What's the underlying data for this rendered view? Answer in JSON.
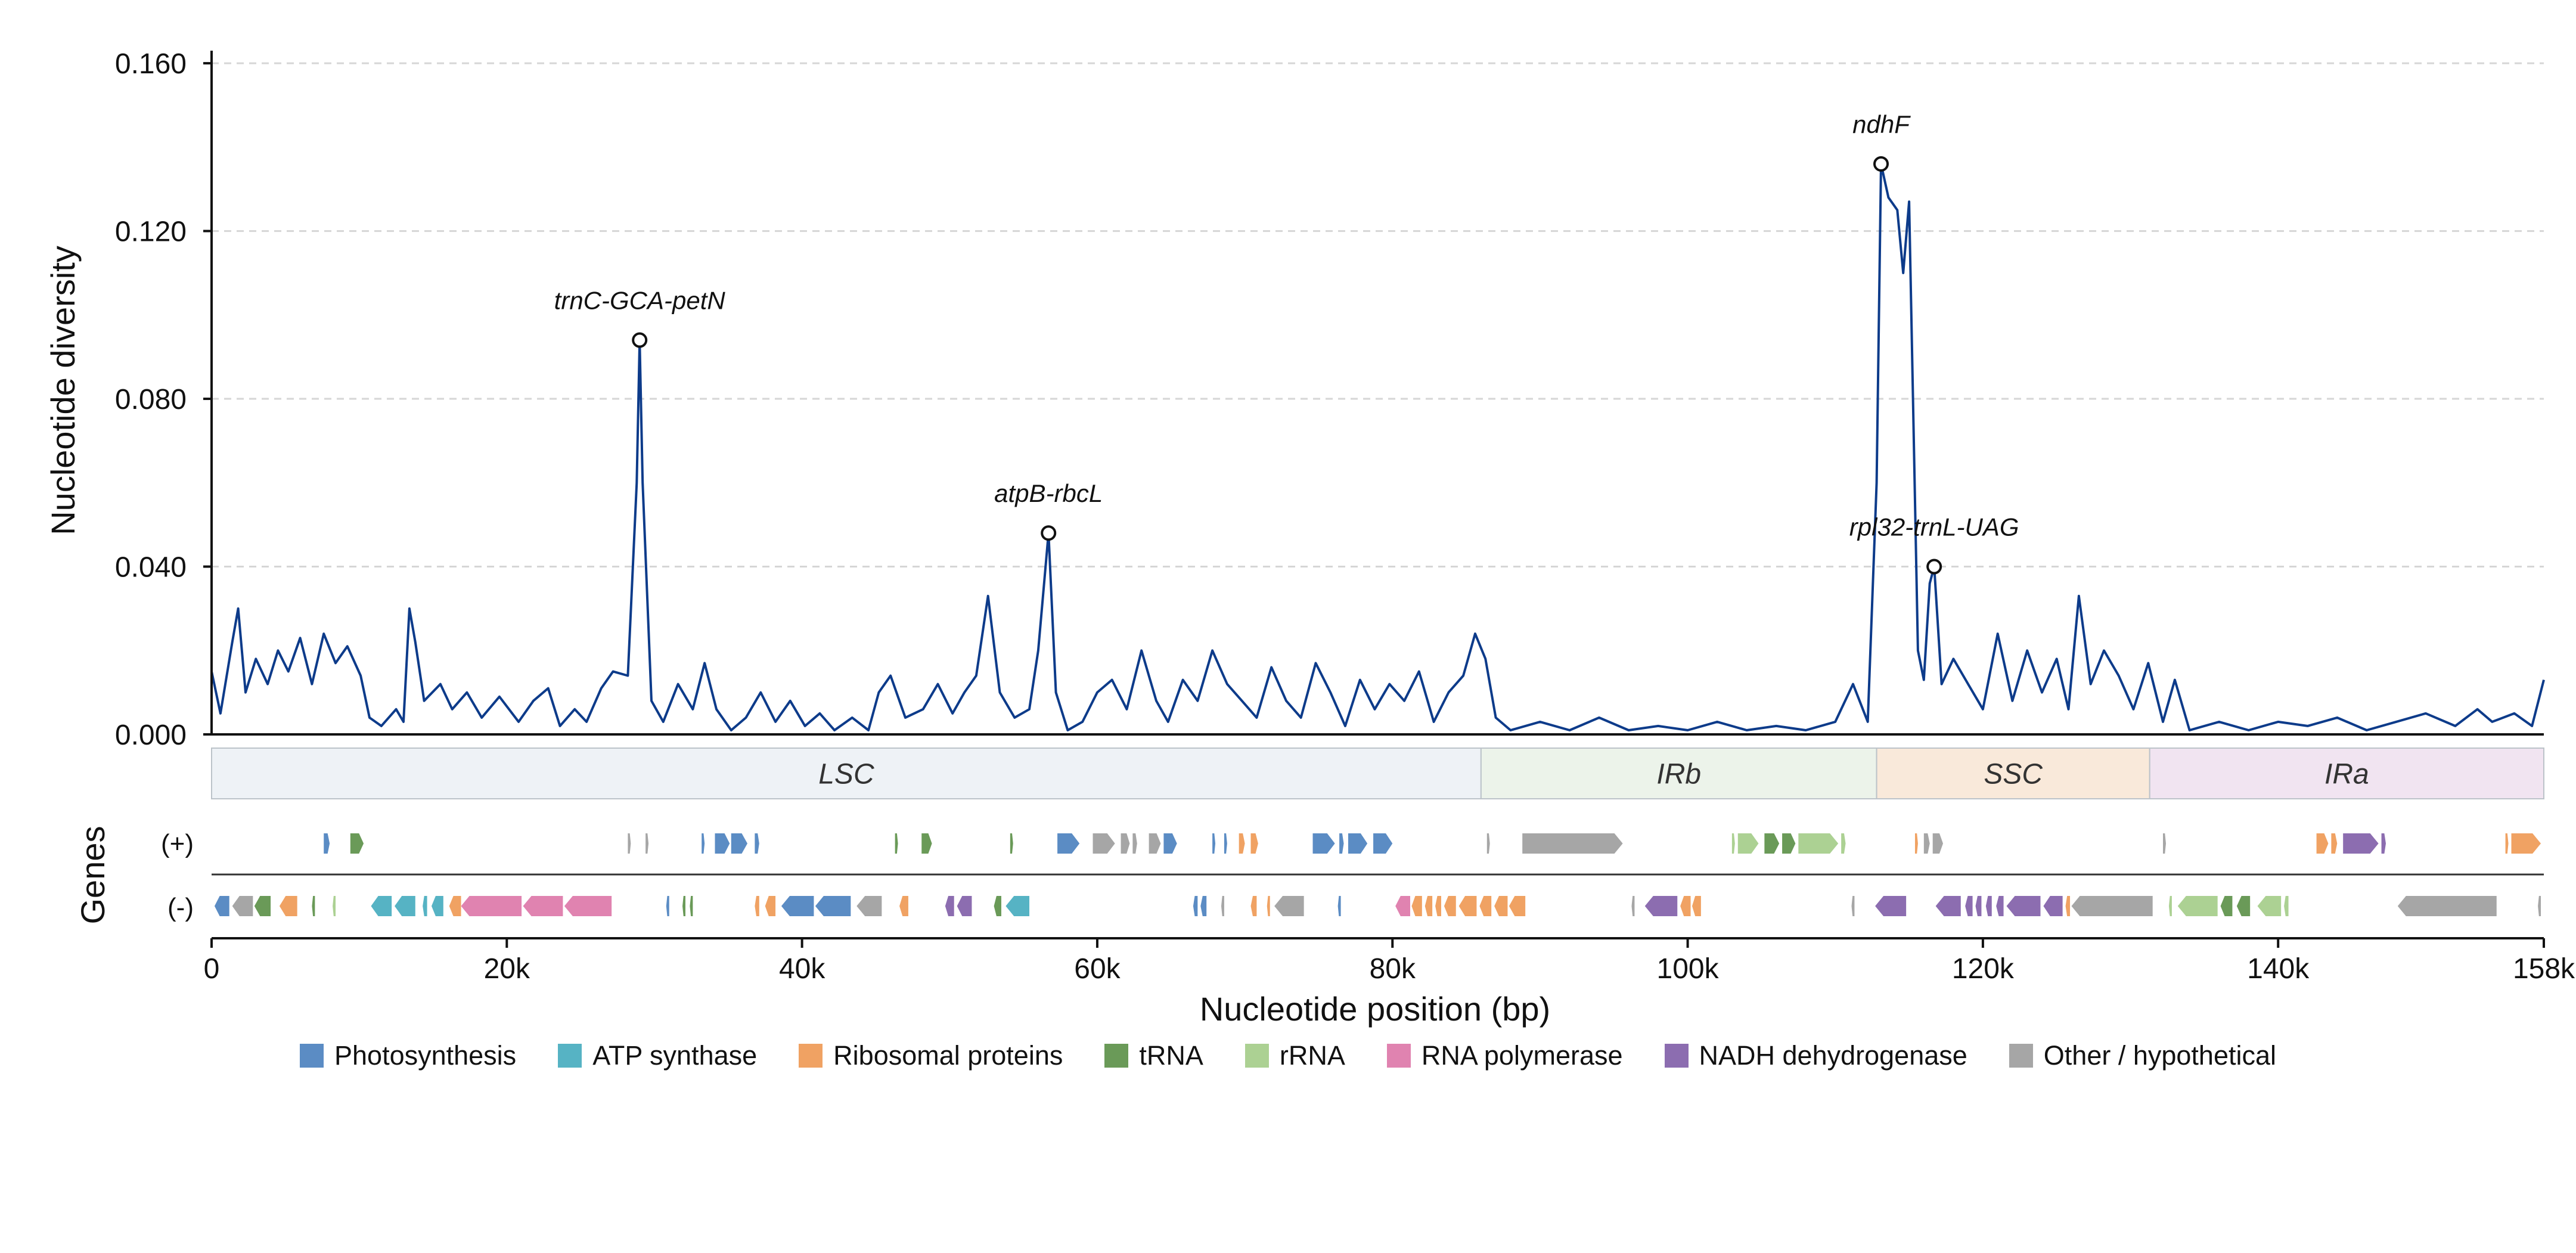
{
  "chart_data": {
    "type": "line",
    "title": "",
    "xlabel": "Nucleotide position (bp)",
    "ylabel": "Nucleotide diversity",
    "genes_label": "Genes",
    "strand_labels": [
      "(+)",
      "(-)"
    ],
    "xlim": [
      0,
      158000
    ],
    "ylim": [
      0,
      0.163
    ],
    "x_ticks": [
      0,
      20000,
      40000,
      60000,
      80000,
      100000,
      120000,
      140000,
      158000
    ],
    "x_tick_labels": [
      "0",
      "20k",
      "40k",
      "60k",
      "80k",
      "100k",
      "120k",
      "140k",
      "158k"
    ],
    "y_ticks": [
      0.0,
      0.04,
      0.08,
      0.12,
      0.16
    ],
    "y_tick_labels": [
      "0.000",
      "0.040",
      "0.080",
      "0.120",
      "0.160"
    ],
    "grid": "horizontal dashed",
    "line_color": "#0d3b8a",
    "pi_series": [
      [
        0,
        0.015
      ],
      [
        600,
        0.005
      ],
      [
        1400,
        0.022
      ],
      [
        1800,
        0.03
      ],
      [
        2300,
        0.01
      ],
      [
        3000,
        0.018
      ],
      [
        3800,
        0.012
      ],
      [
        4500,
        0.02
      ],
      [
        5200,
        0.015
      ],
      [
        6000,
        0.023
      ],
      [
        6800,
        0.012
      ],
      [
        7600,
        0.024
      ],
      [
        8400,
        0.017
      ],
      [
        9200,
        0.021
      ],
      [
        10100,
        0.014
      ],
      [
        10700,
        0.004
      ],
      [
        11500,
        0.002
      ],
      [
        12500,
        0.006
      ],
      [
        13000,
        0.003
      ],
      [
        13400,
        0.03
      ],
      [
        13800,
        0.022
      ],
      [
        14400,
        0.008
      ],
      [
        15500,
        0.012
      ],
      [
        16300,
        0.006
      ],
      [
        17300,
        0.01
      ],
      [
        18300,
        0.004
      ],
      [
        19500,
        0.009
      ],
      [
        20800,
        0.003
      ],
      [
        21800,
        0.008
      ],
      [
        22800,
        0.011
      ],
      [
        23600,
        0.002
      ],
      [
        24600,
        0.006
      ],
      [
        25400,
        0.003
      ],
      [
        26400,
        0.011
      ],
      [
        27200,
        0.015
      ],
      [
        28200,
        0.014
      ],
      [
        28800,
        0.06
      ],
      [
        29000,
        0.094
      ],
      [
        29200,
        0.06
      ],
      [
        29800,
        0.008
      ],
      [
        30600,
        0.003
      ],
      [
        31600,
        0.012
      ],
      [
        32600,
        0.006
      ],
      [
        33400,
        0.017
      ],
      [
        34200,
        0.006
      ],
      [
        35200,
        0.001
      ],
      [
        36200,
        0.004
      ],
      [
        37200,
        0.01
      ],
      [
        38200,
        0.003
      ],
      [
        39200,
        0.008
      ],
      [
        40200,
        0.002
      ],
      [
        41200,
        0.005
      ],
      [
        42200,
        0.001
      ],
      [
        43400,
        0.004
      ],
      [
        44500,
        0.001
      ],
      [
        45200,
        0.01
      ],
      [
        46000,
        0.014
      ],
      [
        47000,
        0.004
      ],
      [
        48200,
        0.006
      ],
      [
        49200,
        0.012
      ],
      [
        50200,
        0.005
      ],
      [
        51000,
        0.01
      ],
      [
        51800,
        0.014
      ],
      [
        52600,
        0.033
      ],
      [
        53400,
        0.01
      ],
      [
        54400,
        0.004
      ],
      [
        55400,
        0.006
      ],
      [
        56000,
        0.02
      ],
      [
        56700,
        0.048
      ],
      [
        57200,
        0.01
      ],
      [
        58000,
        0.001
      ],
      [
        59000,
        0.003
      ],
      [
        60000,
        0.01
      ],
      [
        61000,
        0.013
      ],
      [
        62000,
        0.006
      ],
      [
        63000,
        0.02
      ],
      [
        64000,
        0.008
      ],
      [
        64800,
        0.003
      ],
      [
        65800,
        0.013
      ],
      [
        66800,
        0.008
      ],
      [
        67800,
        0.02
      ],
      [
        68800,
        0.012
      ],
      [
        69800,
        0.008
      ],
      [
        70800,
        0.004
      ],
      [
        71800,
        0.016
      ],
      [
        72800,
        0.008
      ],
      [
        73800,
        0.004
      ],
      [
        74800,
        0.017
      ],
      [
        75800,
        0.01
      ],
      [
        76800,
        0.002
      ],
      [
        77800,
        0.013
      ],
      [
        78800,
        0.006
      ],
      [
        79800,
        0.012
      ],
      [
        80800,
        0.008
      ],
      [
        81800,
        0.015
      ],
      [
        82800,
        0.003
      ],
      [
        83800,
        0.01
      ],
      [
        84800,
        0.014
      ],
      [
        85600,
        0.024
      ],
      [
        86300,
        0.018
      ],
      [
        87000,
        0.004
      ],
      [
        88000,
        0.001
      ],
      [
        90000,
        0.003
      ],
      [
        92000,
        0.001
      ],
      [
        94000,
        0.004
      ],
      [
        96000,
        0.001
      ],
      [
        98000,
        0.002
      ],
      [
        100000,
        0.001
      ],
      [
        102000,
        0.003
      ],
      [
        104000,
        0.001
      ],
      [
        106000,
        0.002
      ],
      [
        108000,
        0.001
      ],
      [
        110000,
        0.003
      ],
      [
        111200,
        0.012
      ],
      [
        112200,
        0.003
      ],
      [
        112800,
        0.06
      ],
      [
        113100,
        0.136
      ],
      [
        113600,
        0.128
      ],
      [
        114200,
        0.125
      ],
      [
        114600,
        0.11
      ],
      [
        115000,
        0.127
      ],
      [
        115600,
        0.02
      ],
      [
        116000,
        0.013
      ],
      [
        116400,
        0.036
      ],
      [
        116700,
        0.04
      ],
      [
        117200,
        0.012
      ],
      [
        118000,
        0.018
      ],
      [
        119000,
        0.012
      ],
      [
        120000,
        0.006
      ],
      [
        121000,
        0.024
      ],
      [
        122000,
        0.008
      ],
      [
        123000,
        0.02
      ],
      [
        124000,
        0.01
      ],
      [
        125000,
        0.018
      ],
      [
        125800,
        0.006
      ],
      [
        126500,
        0.033
      ],
      [
        127300,
        0.012
      ],
      [
        128200,
        0.02
      ],
      [
        129200,
        0.014
      ],
      [
        130200,
        0.006
      ],
      [
        131200,
        0.017
      ],
      [
        132200,
        0.003
      ],
      [
        133000,
        0.013
      ],
      [
        134000,
        0.001
      ],
      [
        136000,
        0.003
      ],
      [
        138000,
        0.001
      ],
      [
        140000,
        0.003
      ],
      [
        142000,
        0.002
      ],
      [
        144000,
        0.004
      ],
      [
        146000,
        0.001
      ],
      [
        148000,
        0.003
      ],
      [
        150000,
        0.005
      ],
      [
        152000,
        0.002
      ],
      [
        153500,
        0.006
      ],
      [
        154500,
        0.003
      ],
      [
        156000,
        0.005
      ],
      [
        157200,
        0.002
      ],
      [
        158000,
        0.013
      ]
    ],
    "peaks": [
      {
        "label": "trnC-GCA-petN",
        "x": 29000,
        "y": 0.094
      },
      {
        "label": "atpB-rbcL",
        "x": 56700,
        "y": 0.048
      },
      {
        "label": "ndhF",
        "x": 113100,
        "y": 0.136
      },
      {
        "label": "rpl32-trnL-UAG",
        "x": 116700,
        "y": 0.04
      }
    ],
    "regions": [
      {
        "name": "LSC",
        "start": 0,
        "end": 86000,
        "color": "#eef2f6"
      },
      {
        "name": "IRb",
        "start": 86000,
        "end": 112800,
        "color": "#ecf3ea"
      },
      {
        "name": "SSC",
        "start": 112800,
        "end": 131300,
        "color": "#f9e9da"
      },
      {
        "name": "IRa",
        "start": 131300,
        "end": 158000,
        "color": "#f1e4f1"
      }
    ],
    "legend": [
      {
        "name": "Photosynthesis",
        "color": "#5b8cc4"
      },
      {
        "name": "ATP synthase",
        "color": "#56b3c4"
      },
      {
        "name": "Ribosomal proteins",
        "color": "#f0a263"
      },
      {
        "name": "tRNA",
        "color": "#6a9a58"
      },
      {
        "name": "rRNA",
        "color": "#acd193"
      },
      {
        "name": "RNA polymerase",
        "color": "#e083b0"
      },
      {
        "name": "NADH dehydrogenase",
        "color": "#8c6db0"
      },
      {
        "name": "Other / hypothetical",
        "color": "#a6a6a6"
      }
    ],
    "genes_plus": [
      {
        "s": 7600,
        "e": 8000,
        "c": "photo"
      },
      {
        "s": 9400,
        "e": 10300,
        "c": "trna"
      },
      {
        "s": 28200,
        "e": 28400,
        "c": "other"
      },
      {
        "s": 29400,
        "e": 29600,
        "c": "other"
      },
      {
        "s": 33200,
        "e": 33400,
        "c": "photo"
      },
      {
        "s": 34100,
        "e": 35100,
        "c": "photo"
      },
      {
        "s": 35200,
        "e": 36300,
        "c": "photo"
      },
      {
        "s": 36800,
        "e": 37100,
        "c": "photo"
      },
      {
        "s": 46300,
        "e": 46500,
        "c": "trna"
      },
      {
        "s": 48100,
        "e": 48800,
        "c": "trna"
      },
      {
        "s": 54100,
        "e": 54300,
        "c": "trna"
      },
      {
        "s": 57300,
        "e": 58800,
        "c": "photo"
      },
      {
        "s": 59700,
        "e": 61200,
        "c": "other"
      },
      {
        "s": 61600,
        "e": 62200,
        "c": "other"
      },
      {
        "s": 62400,
        "e": 62700,
        "c": "other"
      },
      {
        "s": 63500,
        "e": 64300,
        "c": "other"
      },
      {
        "s": 64500,
        "e": 65400,
        "c": "photo"
      },
      {
        "s": 67800,
        "e": 68000,
        "c": "photo"
      },
      {
        "s": 68600,
        "e": 68800,
        "c": "photo"
      },
      {
        "s": 69600,
        "e": 70000,
        "c": "ribo"
      },
      {
        "s": 70400,
        "e": 70900,
        "c": "ribo"
      },
      {
        "s": 74600,
        "e": 76100,
        "c": "photo"
      },
      {
        "s": 76400,
        "e": 76700,
        "c": "photo"
      },
      {
        "s": 77000,
        "e": 78300,
        "c": "photo"
      },
      {
        "s": 78700,
        "e": 80000,
        "c": "photo"
      },
      {
        "s": 86400,
        "e": 86600,
        "c": "other"
      },
      {
        "s": 88800,
        "e": 95600,
        "c": "other"
      },
      {
        "s": 103000,
        "e": 103200,
        "c": "rrna"
      },
      {
        "s": 103400,
        "e": 104800,
        "c": "rrna"
      },
      {
        "s": 105200,
        "e": 106200,
        "c": "trna"
      },
      {
        "s": 106400,
        "e": 107300,
        "c": "trna"
      },
      {
        "s": 107500,
        "e": 110200,
        "c": "rrna"
      },
      {
        "s": 110400,
        "e": 110700,
        "c": "rrna"
      },
      {
        "s": 115400,
        "e": 115600,
        "c": "ribo"
      },
      {
        "s": 116000,
        "e": 116400,
        "c": "other"
      },
      {
        "s": 116600,
        "e": 117300,
        "c": "other"
      },
      {
        "s": 132200,
        "e": 132400,
        "c": "other"
      },
      {
        "s": 142600,
        "e": 143400,
        "c": "ribo"
      },
      {
        "s": 143600,
        "e": 144000,
        "c": "ribo"
      },
      {
        "s": 144400,
        "e": 146800,
        "c": "nadh"
      },
      {
        "s": 147000,
        "e": 147300,
        "c": "nadh"
      },
      {
        "s": 155400,
        "e": 155600,
        "c": "ribo"
      },
      {
        "s": 155800,
        "e": 157800,
        "c": "ribo"
      }
    ],
    "genes_minus": [
      {
        "s": 200,
        "e": 1200,
        "c": "photo"
      },
      {
        "s": 1400,
        "e": 2800,
        "c": "other"
      },
      {
        "s": 2900,
        "e": 4000,
        "c": "trna"
      },
      {
        "s": 4600,
        "e": 5800,
        "c": "ribo"
      },
      {
        "s": 6800,
        "e": 7000,
        "c": "trna"
      },
      {
        "s": 8200,
        "e": 8400,
        "c": "rrna"
      },
      {
        "s": 10800,
        "e": 12200,
        "c": "atp"
      },
      {
        "s": 12400,
        "e": 13800,
        "c": "atp"
      },
      {
        "s": 14300,
        "e": 14600,
        "c": "atp"
      },
      {
        "s": 14900,
        "e": 15700,
        "c": "atp"
      },
      {
        "s": 16100,
        "e": 16900,
        "c": "ribo"
      },
      {
        "s": 16900,
        "e": 21000,
        "c": "rnap"
      },
      {
        "s": 21100,
        "e": 23800,
        "c": "rnap"
      },
      {
        "s": 23900,
        "e": 27100,
        "c": "rnap"
      },
      {
        "s": 30800,
        "e": 31000,
        "c": "photo"
      },
      {
        "s": 31900,
        "e": 32100,
        "c": "trna"
      },
      {
        "s": 32400,
        "e": 32600,
        "c": "trna"
      },
      {
        "s": 36800,
        "e": 37100,
        "c": "ribo"
      },
      {
        "s": 37500,
        "e": 38200,
        "c": "ribo"
      },
      {
        "s": 38600,
        "e": 40800,
        "c": "photo"
      },
      {
        "s": 40900,
        "e": 43300,
        "c": "photo"
      },
      {
        "s": 43700,
        "e": 45400,
        "c": "other"
      },
      {
        "s": 46600,
        "e": 47200,
        "c": "ribo"
      },
      {
        "s": 49700,
        "e": 50300,
        "c": "nadh"
      },
      {
        "s": 50500,
        "e": 51500,
        "c": "nadh"
      },
      {
        "s": 53000,
        "e": 53500,
        "c": "trna"
      },
      {
        "s": 53800,
        "e": 55400,
        "c": "atp"
      },
      {
        "s": 66500,
        "e": 66800,
        "c": "photo"
      },
      {
        "s": 67000,
        "e": 67400,
        "c": "photo"
      },
      {
        "s": 68400,
        "e": 68600,
        "c": "other"
      },
      {
        "s": 70400,
        "e": 70800,
        "c": "ribo"
      },
      {
        "s": 71500,
        "e": 71700,
        "c": "ribo"
      },
      {
        "s": 72000,
        "e": 74000,
        "c": "other"
      },
      {
        "s": 76300,
        "e": 76500,
        "c": "photo"
      },
      {
        "s": 80200,
        "e": 81200,
        "c": "rnap"
      },
      {
        "s": 81300,
        "e": 82000,
        "c": "ribo"
      },
      {
        "s": 82200,
        "e": 82700,
        "c": "ribo"
      },
      {
        "s": 82900,
        "e": 83300,
        "c": "ribo"
      },
      {
        "s": 83500,
        "e": 84300,
        "c": "ribo"
      },
      {
        "s": 84500,
        "e": 85700,
        "c": "ribo"
      },
      {
        "s": 85900,
        "e": 86700,
        "c": "ribo"
      },
      {
        "s": 86900,
        "e": 87800,
        "c": "ribo"
      },
      {
        "s": 87900,
        "e": 89000,
        "c": "ribo"
      },
      {
        "s": 96200,
        "e": 96400,
        "c": "other"
      },
      {
        "s": 97100,
        "e": 99300,
        "c": "nadh"
      },
      {
        "s": 99500,
        "e": 100200,
        "c": "ribo"
      },
      {
        "s": 100300,
        "e": 100900,
        "c": "ribo"
      },
      {
        "s": 111100,
        "e": 111300,
        "c": "other"
      },
      {
        "s": 112700,
        "e": 114800,
        "c": "nadh"
      },
      {
        "s": 116800,
        "e": 118500,
        "c": "nadh"
      },
      {
        "s": 118800,
        "e": 119300,
        "c": "nadh"
      },
      {
        "s": 119500,
        "e": 119900,
        "c": "nadh"
      },
      {
        "s": 120200,
        "e": 120600,
        "c": "nadh"
      },
      {
        "s": 120900,
        "e": 121400,
        "c": "nadh"
      },
      {
        "s": 121600,
        "e": 123900,
        "c": "nadh"
      },
      {
        "s": 124100,
        "e": 125400,
        "c": "nadh"
      },
      {
        "s": 125600,
        "e": 125900,
        "c": "ribo"
      },
      {
        "s": 126000,
        "e": 131500,
        "c": "other"
      },
      {
        "s": 132600,
        "e": 132800,
        "c": "rrna"
      },
      {
        "s": 133200,
        "e": 135900,
        "c": "rrna"
      },
      {
        "s": 136100,
        "e": 136900,
        "c": "trna"
      },
      {
        "s": 137200,
        "e": 138100,
        "c": "trna"
      },
      {
        "s": 138600,
        "e": 140200,
        "c": "rrna"
      },
      {
        "s": 140400,
        "e": 140700,
        "c": "rrna"
      },
      {
        "s": 148100,
        "e": 154800,
        "c": "other"
      },
      {
        "s": 157600,
        "e": 157800,
        "c": "other"
      }
    ]
  }
}
